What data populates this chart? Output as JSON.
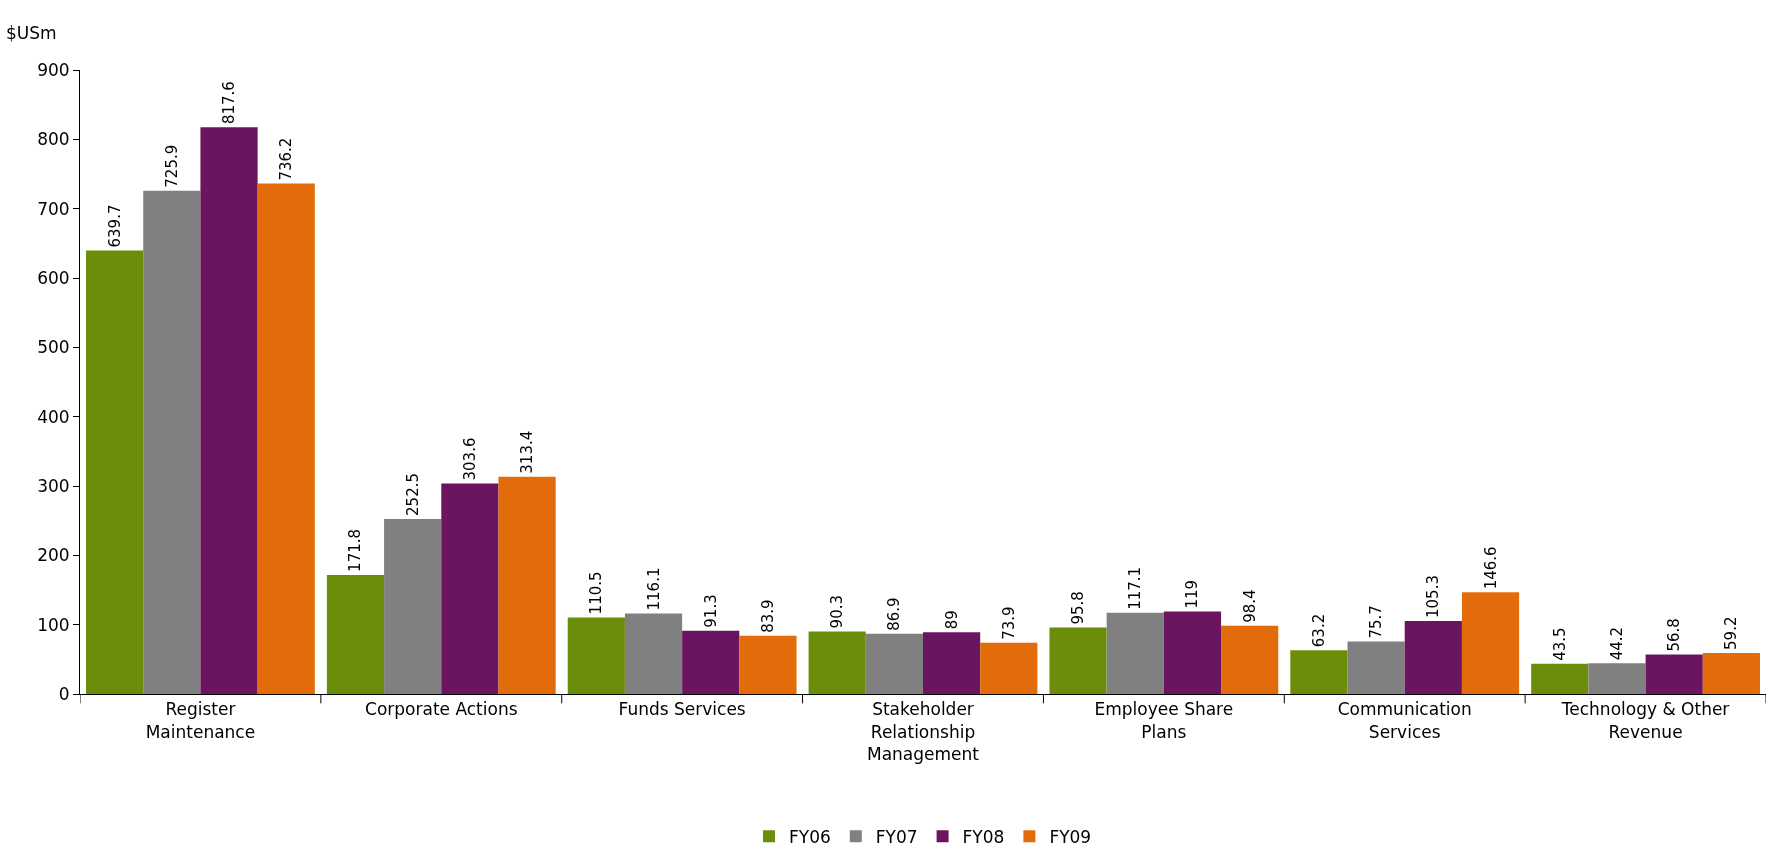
{
  "chart_data": {
    "type": "bar",
    "ylabel": "$USm",
    "categories": [
      "Register Maintenance",
      "Corporate Actions",
      "Funds Services",
      "Stakeholder Relationship Management",
      "Employee Share Plans",
      "Communication Services",
      "Technology & Other Revenue"
    ],
    "series": [
      {
        "name": "FY06",
        "color": "#6b8e0a",
        "values": [
          639.7,
          171.8,
          110.5,
          90.3,
          95.8,
          63.2,
          43.5
        ]
      },
      {
        "name": "FY07",
        "color": "#808080",
        "values": [
          725.9,
          252.5,
          116.1,
          86.9,
          117.1,
          75.7,
          44.2
        ]
      },
      {
        "name": "FY08",
        "color": "#6b1560",
        "values": [
          817.6,
          303.6,
          91.3,
          89,
          119,
          105.3,
          56.8
        ]
      },
      {
        "name": "FY09",
        "color": "#e36c0a",
        "values": [
          736.2,
          313.4,
          83.9,
          73.9,
          98.4,
          146.6,
          59.2
        ]
      }
    ],
    "ylim": [
      0,
      900
    ],
    "yticks": [
      0,
      100,
      200,
      300,
      400,
      500,
      600,
      700,
      800,
      900
    ],
    "grid": false,
    "legend": "bottom",
    "data_labels": true
  }
}
